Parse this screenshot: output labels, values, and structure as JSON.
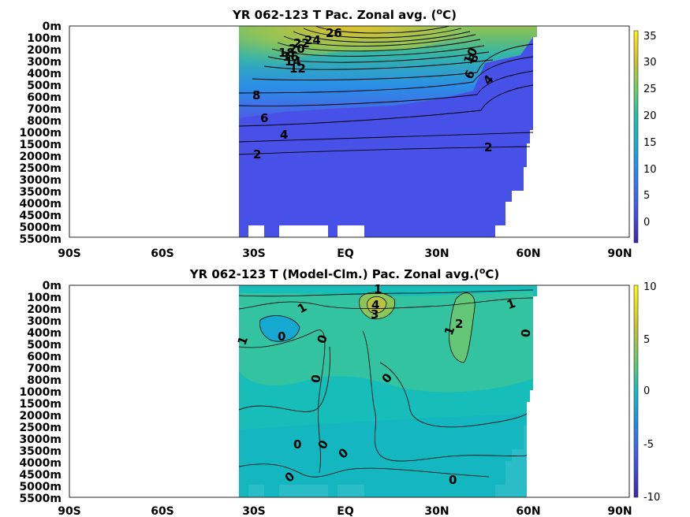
{
  "chart_data": [
    {
      "type": "contour",
      "title": "YR 062-123 T Pac. Zonal avg. (",
      "title_sup": "o",
      "title_end": "C)",
      "x_tick_labels": [
        "90S",
        "60S",
        "30S",
        "EQ",
        "30N",
        "60N",
        "90N"
      ],
      "x_values": [
        -90,
        -60,
        -30,
        0,
        30,
        60,
        90
      ],
      "y_tick_labels": [
        "0m",
        "100m",
        "200m",
        "300m",
        "400m",
        "500m",
        "600m",
        "700m",
        "800m",
        "1000m",
        "1500m",
        "2000m",
        "2500m",
        "3000m",
        "3500m",
        "4000m",
        "4500m",
        "5000m",
        "5500m"
      ],
      "xlim": [
        -90,
        90
      ],
      "colorbar": {
        "ticks": [
          "35",
          "30",
          "25",
          "20",
          "15",
          "10",
          "5",
          "0"
        ],
        "values": [
          35,
          30,
          25,
          20,
          15,
          10,
          5,
          0
        ],
        "range": [
          -3,
          36
        ]
      },
      "contour_labels": [
        "26",
        "24",
        "22",
        "20",
        "18",
        "16",
        "14",
        "12",
        "10",
        "8",
        "6",
        "4",
        "2",
        "10",
        "8",
        "6",
        "4",
        "2"
      ],
      "data_extent_lat": [
        -35,
        62
      ]
    },
    {
      "type": "contour",
      "title": "YR 062-123 T (Model-Clm.) Pac. Zonal avg.(",
      "title_sup": "o",
      "title_end": "C)",
      "x_tick_labels": [
        "90S",
        "60S",
        "30S",
        "EQ",
        "30N",
        "60N",
        "90N"
      ],
      "x_values": [
        -90,
        -60,
        -30,
        0,
        30,
        60,
        90
      ],
      "y_tick_labels": [
        "0m",
        "100m",
        "200m",
        "300m",
        "400m",
        "500m",
        "600m",
        "700m",
        "800m",
        "1000m",
        "1500m",
        "2000m",
        "2500m",
        "3000m",
        "3500m",
        "4000m",
        "4500m",
        "5000m",
        "5500m"
      ],
      "xlim": [
        -90,
        90
      ],
      "colorbar": {
        "ticks": [
          "10",
          "5",
          "0",
          "-5",
          "-10"
        ],
        "values": [
          10,
          5,
          0,
          -5,
          -10
        ],
        "range": [
          -10,
          10
        ]
      },
      "contour_labels": [
        "1",
        "1",
        "4",
        "3",
        "1",
        "2",
        "1",
        "0",
        "0",
        "0",
        "0",
        "1",
        "0",
        "0",
        "0",
        "0",
        "0",
        "0",
        "0"
      ],
      "data_extent_lat": [
        -35,
        62
      ]
    }
  ]
}
